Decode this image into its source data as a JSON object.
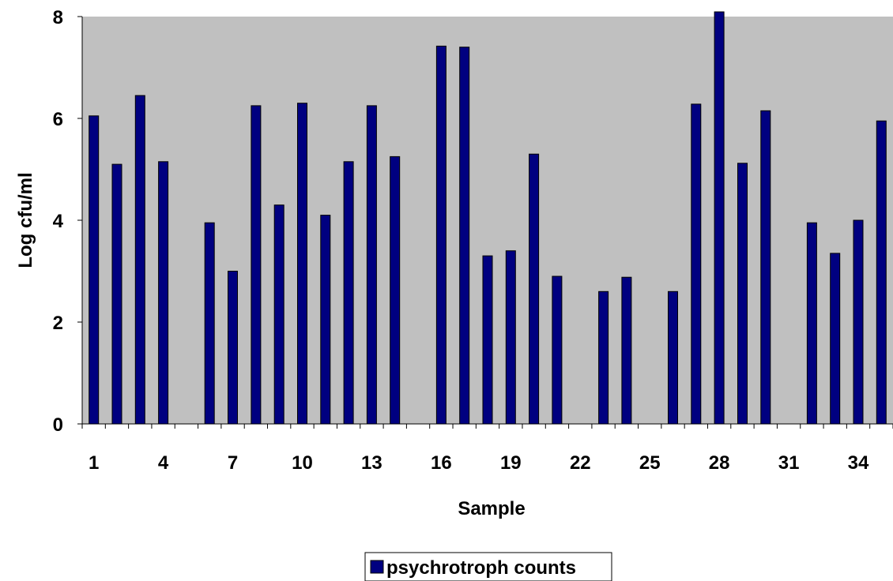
{
  "chart_data": {
    "type": "bar",
    "title": "",
    "xlabel": "Sample",
    "ylabel": "Log cfu/ml",
    "ylim": [
      0,
      8
    ],
    "yticks": [
      0,
      2,
      4,
      6,
      8
    ],
    "xtick_labels": [
      "1",
      "4",
      "7",
      "10",
      "13",
      "16",
      "19",
      "22",
      "25",
      "28",
      "31",
      "34"
    ],
    "categories": [
      "1",
      "2",
      "3",
      "4",
      "5",
      "6",
      "7",
      "8",
      "9",
      "10",
      "11",
      "12",
      "13",
      "14",
      "15",
      "16",
      "17",
      "18",
      "19",
      "20",
      "21",
      "22",
      "23",
      "24",
      "25",
      "26",
      "27",
      "28",
      "29",
      "30",
      "31",
      "32",
      "33",
      "34",
      "35"
    ],
    "series": [
      {
        "name": "psychrotroph counts",
        "color": "#000080",
        "values": [
          6.05,
          5.1,
          6.45,
          5.15,
          0,
          3.95,
          3.0,
          6.25,
          4.3,
          6.3,
          4.1,
          5.15,
          6.25,
          5.25,
          0,
          7.42,
          7.4,
          3.3,
          3.4,
          5.3,
          2.9,
          0,
          2.6,
          2.88,
          0,
          2.6,
          6.28,
          8.1,
          5.12,
          6.15,
          0,
          3.95,
          3.35,
          4.0,
          5.95
        ]
      }
    ],
    "grid": false,
    "plot_background": "#c0c0c0",
    "legend_position": "bottom-center"
  }
}
